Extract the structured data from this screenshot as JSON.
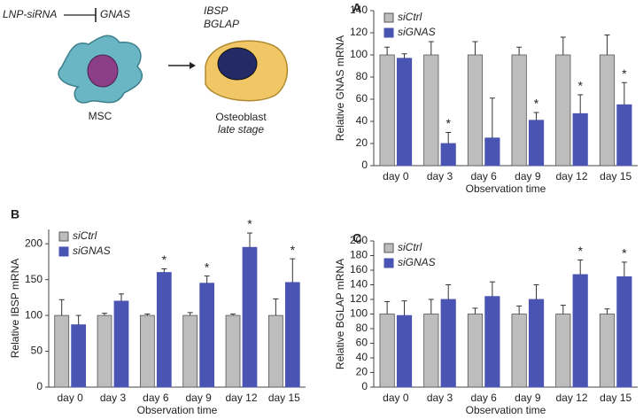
{
  "diagram": {
    "agent": "LNP-siRNA",
    "target": "GNAS",
    "source_cell": "MSC",
    "markers": [
      "IBSP",
      "BGLAP"
    ],
    "result_cell": "Osteoblast",
    "result_stage": "late stage"
  },
  "chart_data": [
    {
      "type": "bar",
      "panel_label": "A",
      "y_label": "Relative GNAS mRNA",
      "x_label": "Observation time",
      "categories": [
        "day 0",
        "day 3",
        "day 6",
        "day 9",
        "day 12",
        "day 15"
      ],
      "series": [
        {
          "name": "siCtrl",
          "color": "#bdbdbd",
          "values": [
            100,
            100,
            100,
            100,
            100,
            100
          ],
          "errors": [
            7,
            12,
            12,
            7,
            16,
            18
          ],
          "significance": [
            null,
            null,
            null,
            null,
            null,
            null
          ]
        },
        {
          "name": "siGNAS",
          "color": "#4a54b2",
          "values": [
            97,
            20,
            25,
            41,
            47,
            55
          ],
          "errors": [
            4,
            10,
            36,
            7,
            17,
            20
          ],
          "significance": [
            null,
            "*",
            null,
            "*",
            "*",
            "*"
          ]
        }
      ],
      "ylim": [
        0,
        140
      ],
      "yticks": [
        0,
        20,
        40,
        60,
        80,
        100,
        120,
        140
      ],
      "legend": "upper left",
      "grid": false
    },
    {
      "type": "bar",
      "panel_label": "B",
      "y_label": "Relative IBSP mRNA",
      "x_label": "Observation time",
      "categories": [
        "day 0",
        "day 3",
        "day 6",
        "day 9",
        "day 12",
        "day 15"
      ],
      "series": [
        {
          "name": "siCtrl",
          "color": "#bdbdbd",
          "values": [
            100,
            100,
            100,
            100,
            100,
            100
          ],
          "errors": [
            22,
            3,
            2,
            4,
            2,
            23
          ],
          "significance": [
            null,
            null,
            null,
            null,
            null,
            null
          ]
        },
        {
          "name": "siGNAS",
          "color": "#4a54b2",
          "values": [
            87,
            120,
            160,
            145,
            195,
            146
          ],
          "errors": [
            13,
            10,
            5,
            10,
            20,
            33
          ],
          "significance": [
            null,
            null,
            "*",
            "*",
            "*",
            "*"
          ]
        }
      ],
      "ylim": [
        0,
        220
      ],
      "yticks": [
        0,
        50,
        100,
        150,
        200
      ],
      "legend": "upper left",
      "grid": false
    },
    {
      "type": "bar",
      "panel_label": "C",
      "y_label": "Relative BGLAP mRNA",
      "x_label": "Observation time",
      "categories": [
        "day 0",
        "day 3",
        "day 6",
        "day 9",
        "day 12",
        "day 15"
      ],
      "series": [
        {
          "name": "siCtrl",
          "color": "#bdbdbd",
          "values": [
            100,
            100,
            100,
            100,
            100,
            100
          ],
          "errors": [
            17,
            20,
            8,
            11,
            12,
            7
          ],
          "significance": [
            null,
            null,
            null,
            null,
            null,
            null
          ]
        },
        {
          "name": "siGNAS",
          "color": "#4a54b2",
          "values": [
            98,
            120,
            124,
            120,
            154,
            151
          ],
          "errors": [
            20,
            20,
            20,
            20,
            20,
            20
          ],
          "significance": [
            null,
            null,
            null,
            null,
            "*",
            "*"
          ]
        }
      ],
      "ylim": [
        0,
        200
      ],
      "yticks": [
        0,
        20,
        40,
        60,
        80,
        100,
        120,
        140,
        160,
        180,
        200
      ],
      "legend": "upper left",
      "grid": false
    }
  ]
}
